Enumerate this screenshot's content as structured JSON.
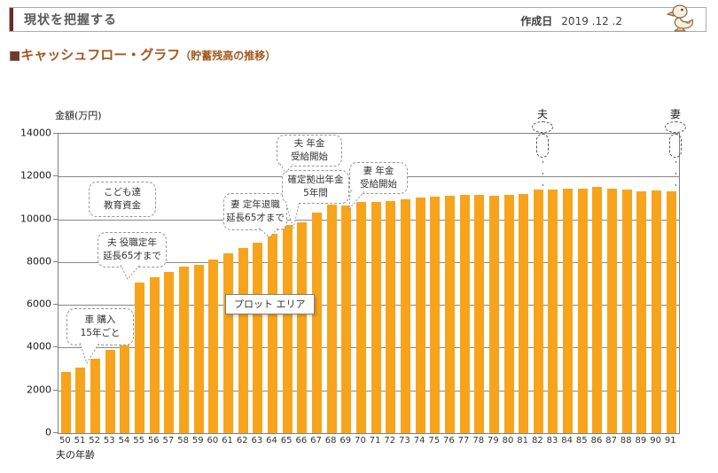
{
  "header": {
    "title": "現状を把握する",
    "date_label": "作成日",
    "date_value": "2019 .12 .2",
    "mascot_icon": "duck-mascot"
  },
  "section": {
    "bullet": "■",
    "title": "キャッシュフロー・グラフ",
    "subtitle": "（貯蓄残高の推移）"
  },
  "chart_data": {
    "type": "bar",
    "title": "キャッシュフロー・グラフ（貯蓄残高の推移）",
    "ylabel": "金額(万円)",
    "xlabel": "夫の年齢",
    "ylim": [
      0,
      14000
    ],
    "ytick_interval": 2000,
    "grid": true,
    "legend": "none",
    "bar_color": "#f7a41c",
    "categories": [
      50,
      51,
      52,
      53,
      54,
      55,
      56,
      57,
      58,
      59,
      60,
      61,
      62,
      63,
      64,
      65,
      66,
      67,
      68,
      69,
      70,
      71,
      72,
      73,
      74,
      75,
      76,
      77,
      78,
      79,
      80,
      81,
      82,
      83,
      84,
      85,
      86,
      87,
      88,
      89,
      90,
      91
    ],
    "values": [
      2850,
      3050,
      3500,
      3900,
      4300,
      7050,
      7300,
      7550,
      7800,
      7850,
      8100,
      8400,
      8650,
      8900,
      9300,
      9750,
      9850,
      10300,
      10700,
      10650,
      10800,
      10800,
      10850,
      10950,
      11000,
      11050,
      11100,
      11150,
      11150,
      11100,
      11150,
      11200,
      11400,
      11400,
      11450,
      11450,
      11500,
      11450,
      11400,
      11300,
      11350,
      11300
    ],
    "annotations": [
      {
        "id": "kodomo",
        "lines": [
          "こども達",
          "教育資金"
        ]
      },
      {
        "id": "yakushoku",
        "lines": [
          "夫 役職定年",
          "延長65才まで"
        ]
      },
      {
        "id": "car",
        "lines": [
          "車 購入",
          "15年ごと"
        ]
      },
      {
        "id": "tsuma-teinen",
        "lines": [
          "妻 定年退職",
          "延長65才まで"
        ]
      },
      {
        "id": "kakutei",
        "lines": [
          "確定拠出年金",
          "5年間"
        ]
      },
      {
        "id": "otto-nenkin",
        "lines": [
          "夫 年金",
          "受給開始"
        ]
      },
      {
        "id": "tsuma-nenkin",
        "lines": [
          "妻 年金",
          "受給開始"
        ]
      }
    ],
    "tooltip": "プロット エリア",
    "age_markers": [
      {
        "label": "夫",
        "age": 82
      },
      {
        "label": "妻",
        "age": 91
      }
    ]
  },
  "colors": {
    "bar": "#f7a41c",
    "header_stripe": "#6e2a23",
    "section_title": "#a2561d",
    "gridline": "#878787"
  }
}
